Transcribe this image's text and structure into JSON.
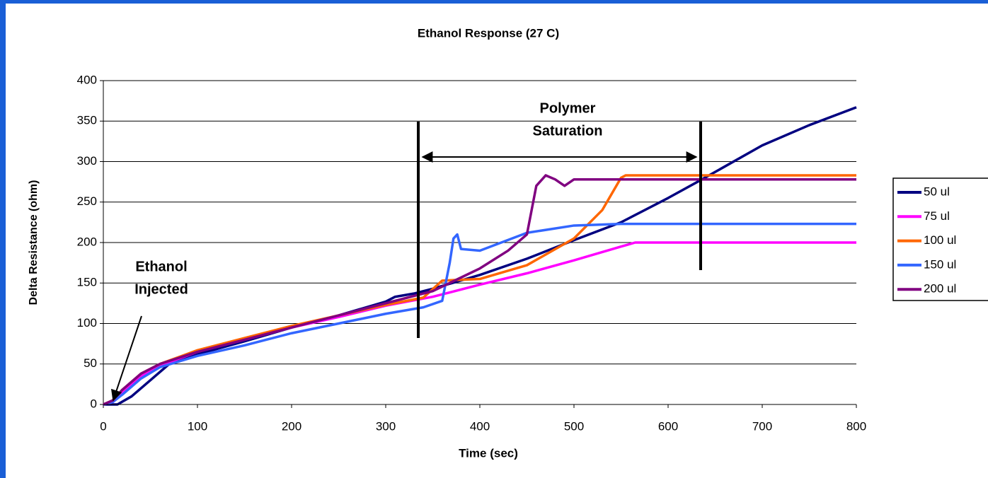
{
  "chart_data": {
    "type": "line",
    "title": "Ethanol Response (27 C)",
    "x_label": "Time (sec)",
    "y_label": "Delta Resistance (ohm)",
    "xlim": [
      0,
      800
    ],
    "xticks": [
      0,
      100,
      200,
      300,
      400,
      500,
      600,
      700,
      800
    ],
    "ylim": [
      0,
      400
    ],
    "yticks": [
      0,
      50,
      100,
      150,
      200,
      250,
      300,
      350,
      400
    ],
    "grid": true,
    "legend": "right",
    "annotations": [
      {
        "lines": [
          "Ethanol",
          "Injected"
        ]
      },
      {
        "lines": [
          "Polymer",
          "Saturation"
        ]
      }
    ],
    "series": [
      {
        "name": "50 ul",
        "color": "#000080",
        "x": [
          0,
          15,
          30,
          50,
          70,
          100,
          150,
          200,
          250,
          300,
          310,
          330,
          350,
          400,
          450,
          500,
          550,
          600,
          636,
          700,
          750,
          800
        ],
        "values": [
          0,
          0,
          10,
          30,
          50,
          62,
          78,
          95,
          110,
          127,
          133,
          137,
          143,
          160,
          180,
          203,
          225,
          255,
          278,
          320,
          345,
          367
        ]
      },
      {
        "name": "75 ul",
        "color": "#ff00ff",
        "x": [
          0,
          10,
          20,
          40,
          60,
          100,
          150,
          200,
          250,
          300,
          350,
          400,
          450,
          500,
          550,
          565,
          800
        ],
        "values": [
          0,
          3,
          15,
          35,
          48,
          65,
          80,
          95,
          108,
          122,
          133,
          148,
          162,
          178,
          195,
          200,
          200
        ]
      },
      {
        "name": "100 ul",
        "color": "#ff6600",
        "x": [
          0,
          10,
          20,
          40,
          60,
          100,
          150,
          200,
          250,
          300,
          340,
          360,
          400,
          450,
          500,
          530,
          550,
          555,
          800
        ],
        "values": [
          0,
          5,
          18,
          38,
          50,
          67,
          82,
          97,
          110,
          123,
          132,
          153,
          155,
          172,
          205,
          240,
          280,
          283,
          283
        ]
      },
      {
        "name": "150 ul",
        "color": "#3366ff",
        "x": [
          0,
          10,
          20,
          40,
          60,
          100,
          150,
          200,
          250,
          300,
          340,
          360,
          368,
          372,
          376,
          380,
          400,
          450,
          500,
          550,
          800
        ],
        "values": [
          0,
          3,
          12,
          32,
          46,
          60,
          73,
          88,
          100,
          112,
          120,
          128,
          175,
          205,
          210,
          192,
          190,
          212,
          221,
          223,
          223
        ]
      },
      {
        "name": "200 ul",
        "color": "#800080",
        "x": [
          0,
          10,
          20,
          40,
          60,
          100,
          150,
          200,
          250,
          300,
          350,
          400,
          430,
          450,
          455,
          460,
          470,
          480,
          490,
          500,
          800
        ],
        "values": [
          0,
          5,
          18,
          38,
          50,
          65,
          80,
          95,
          110,
          125,
          140,
          168,
          190,
          210,
          240,
          270,
          283,
          278,
          270,
          278,
          278
        ]
      }
    ]
  }
}
